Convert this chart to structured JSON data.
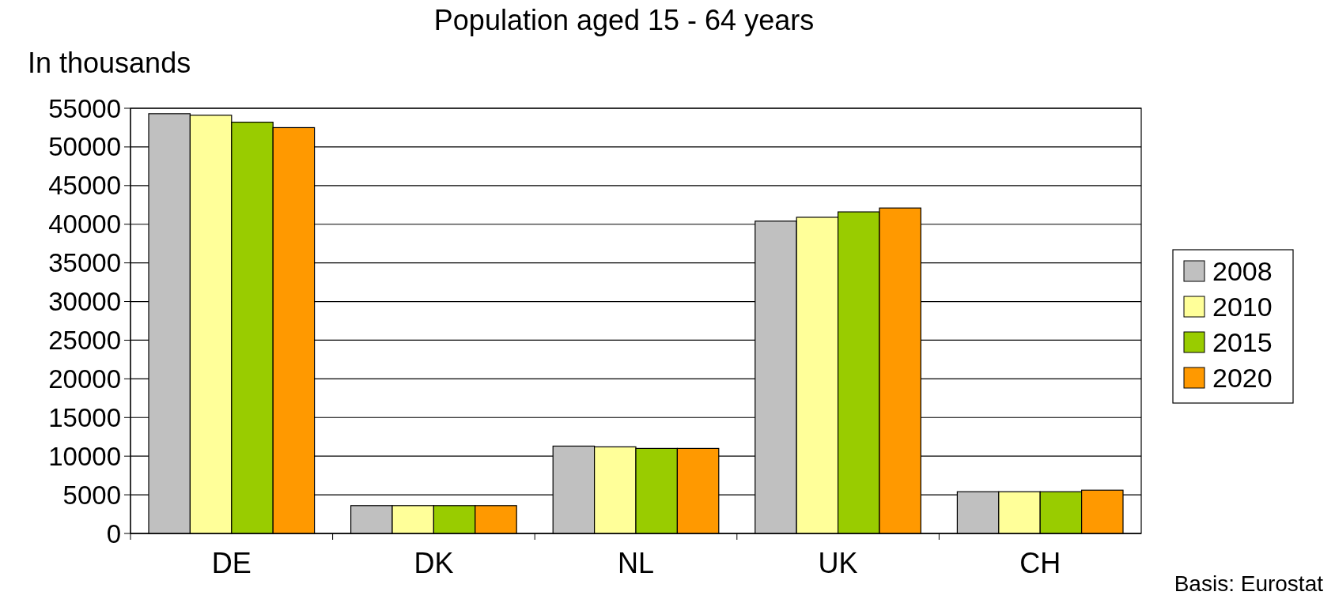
{
  "chart_data": {
    "type": "bar",
    "title": "Population aged 15 - 64 years",
    "ylabel": "In thousands",
    "categories": [
      "DE",
      "DK",
      "NL",
      "UK",
      "CH"
    ],
    "series": [
      {
        "name": "2008",
        "color": "#c0c0c0",
        "values": [
          54300,
          3600,
          11300,
          40400,
          5400
        ]
      },
      {
        "name": "2010",
        "color": "#ffff99",
        "values": [
          54100,
          3600,
          11200,
          40900,
          5400
        ]
      },
      {
        "name": "2015",
        "color": "#99cc00",
        "values": [
          53200,
          3600,
          11000,
          41600,
          5400
        ]
      },
      {
        "name": "2020",
        "color": "#ff9900",
        "values": [
          52500,
          3600,
          11000,
          42100,
          5600
        ]
      }
    ],
    "ylim": [
      0,
      55000
    ],
    "yticks": [
      0,
      5000,
      10000,
      15000,
      20000,
      25000,
      30000,
      35000,
      40000,
      45000,
      50000,
      55000
    ],
    "grid": "y",
    "legend": "right",
    "annotations": [
      "Basis: Eurostat"
    ]
  }
}
